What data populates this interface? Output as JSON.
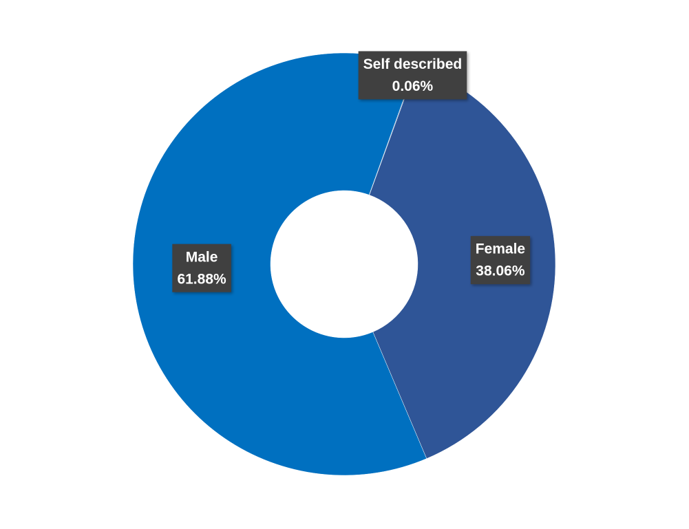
{
  "chart_data": {
    "type": "donut",
    "categories": [
      "Self described",
      "Female",
      "Male"
    ],
    "values": [
      0.06,
      38.06,
      61.88
    ],
    "value_labels": [
      "0.06%",
      "38.06%",
      "61.88%"
    ],
    "colors": [
      "#3a6bb0",
      "#2f5597",
      "#0070c0"
    ]
  }
}
